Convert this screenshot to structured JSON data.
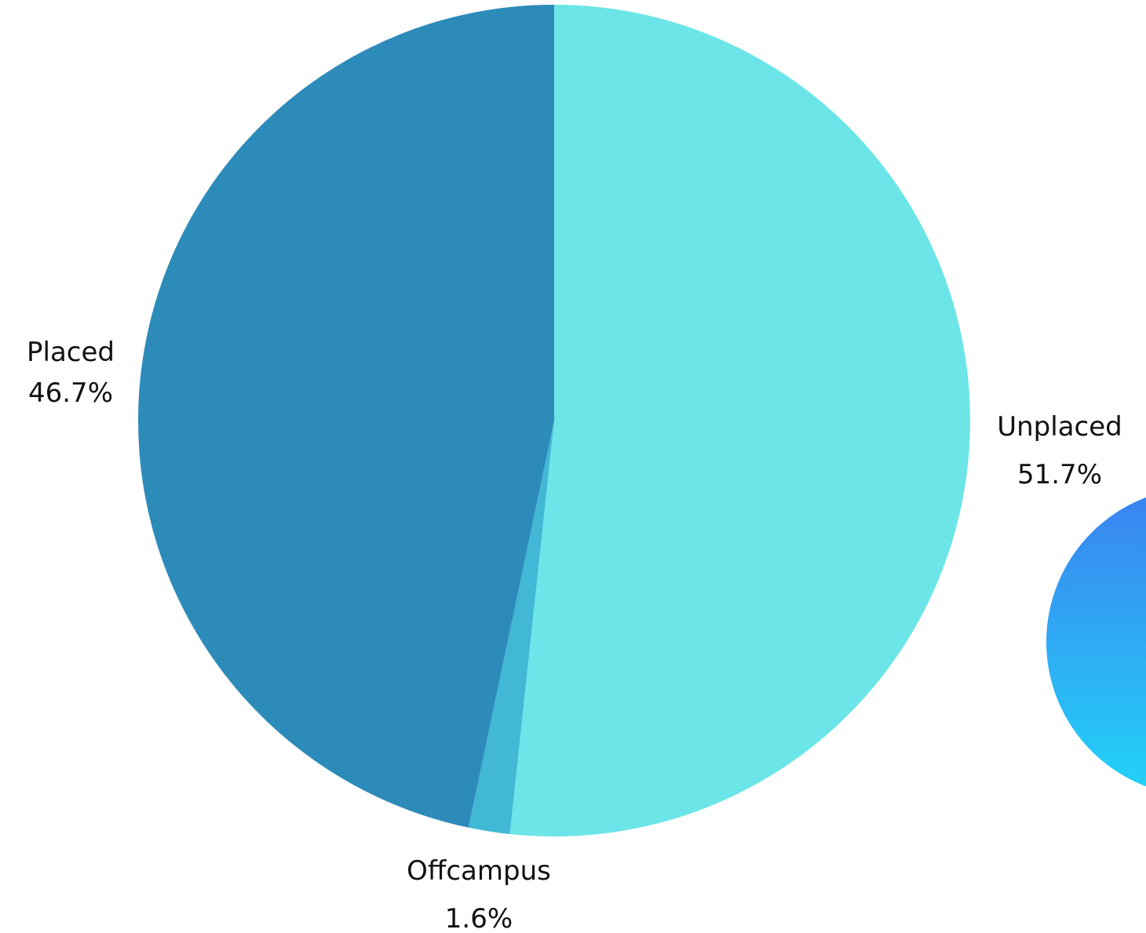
{
  "chart_data": {
    "type": "pie",
    "title": "",
    "start_angle_deg": 0,
    "direction": "clockwise",
    "slices": [
      {
        "label": "Unplaced",
        "value": 51.7,
        "value_label": "51.7%",
        "color": "#6ce5e8"
      },
      {
        "label": "Offcampus",
        "value": 1.6,
        "value_label": "1.6%",
        "color": "#41b8d5"
      },
      {
        "label": "Placed",
        "value": 46.7,
        "value_label": "46.7%",
        "color": "#2d8bba"
      }
    ]
  },
  "decoration": {
    "gradient_top": "#3b82f0",
    "gradient_bottom": "#22d3f7"
  }
}
